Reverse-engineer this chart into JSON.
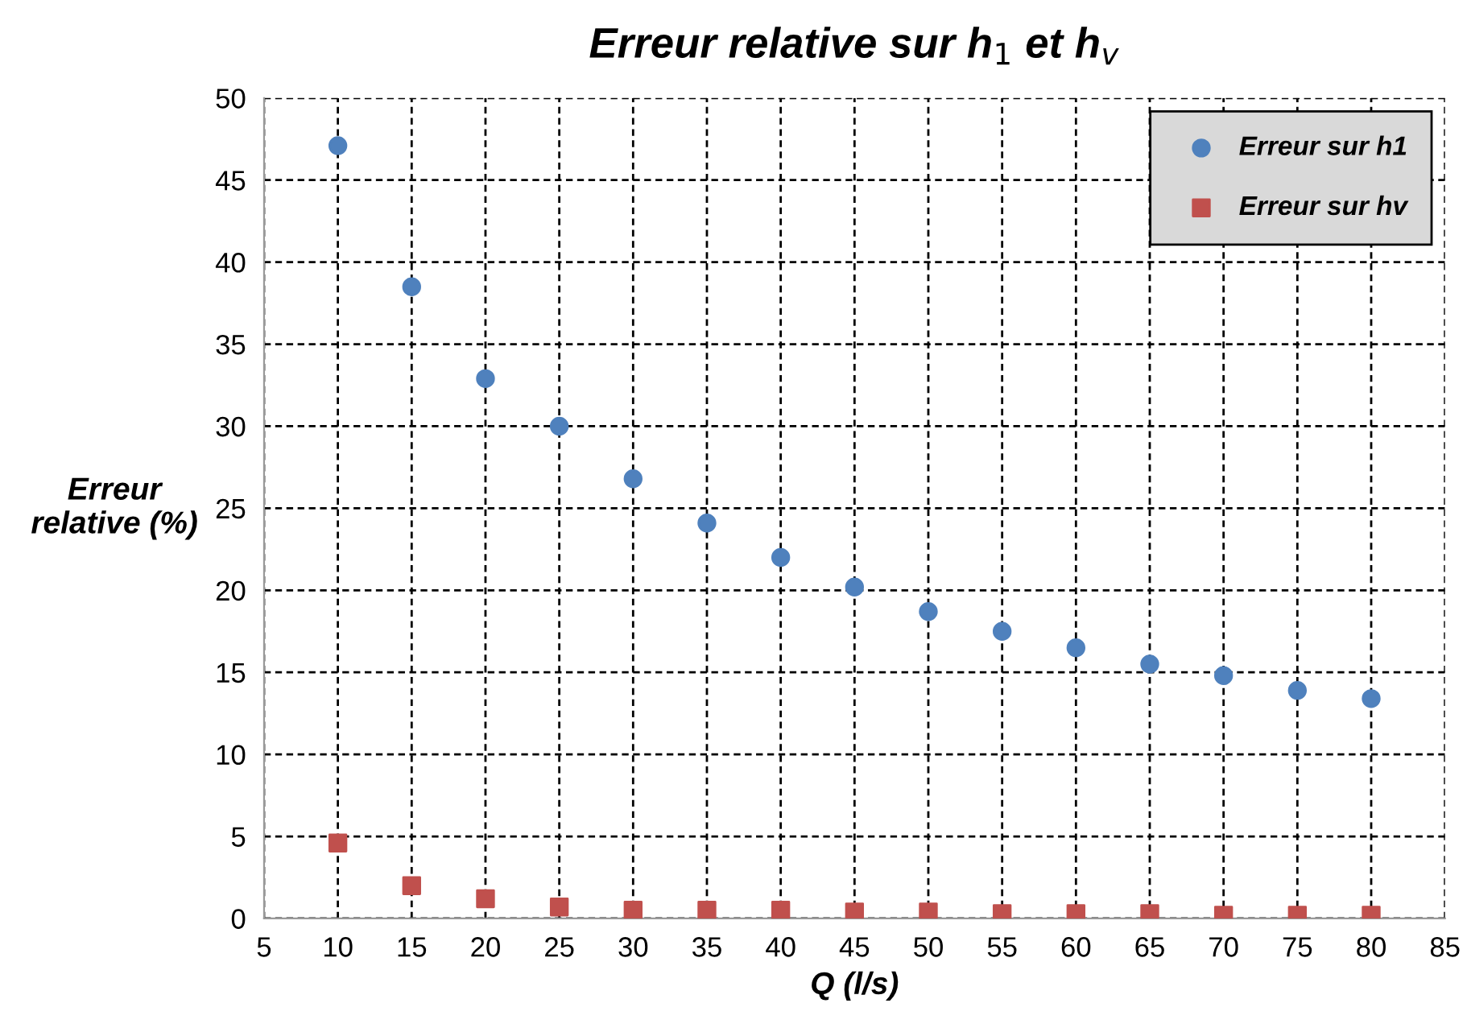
{
  "chart_data": {
    "type": "scatter",
    "title": "Erreur relative sur h$_{1}$ et h$_{v}$",
    "xlabel": "Q (l/s)",
    "ylabel": "Erreur\nrelative (%)",
    "x": [
      10,
      15,
      20,
      25,
      30,
      35,
      40,
      45,
      50,
      55,
      60,
      65,
      70,
      75,
      80
    ],
    "series": [
      {
        "name": "Erreur sur h1",
        "color": "#4f81bd",
        "marker": "circle",
        "values": [
          47.1,
          38.5,
          32.9,
          30.0,
          26.8,
          24.1,
          22.0,
          20.2,
          18.7,
          17.5,
          16.5,
          15.5,
          14.8,
          13.9,
          13.4
        ]
      },
      {
        "name": "Erreur sur hv",
        "color": "#c0504d",
        "marker": "square",
        "values": [
          4.6,
          2.0,
          1.2,
          0.7,
          0.5,
          0.5,
          0.5,
          0.4,
          0.4,
          0.3,
          0.3,
          0.3,
          0.2,
          0.2,
          0.2
        ]
      }
    ],
    "xlim": [
      5,
      85
    ],
    "xticks": [
      5,
      10,
      15,
      20,
      25,
      30,
      35,
      40,
      45,
      50,
      55,
      60,
      65,
      70,
      75,
      80,
      85
    ],
    "ylim": [
      0,
      50
    ],
    "yticks": [
      0,
      5,
      10,
      15,
      20,
      25,
      30,
      35,
      40,
      45,
      50
    ],
    "grid": true,
    "legend": "top right"
  }
}
